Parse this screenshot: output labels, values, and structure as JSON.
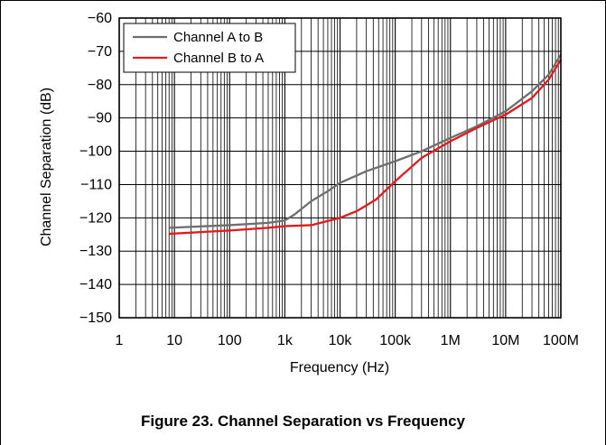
{
  "caption": "Figure 23. Channel Separation vs Frequency",
  "chart_data": {
    "type": "line",
    "title": "",
    "xlabel": "Frequency (Hz)",
    "ylabel": "Channel Separation (dB)",
    "xscale": "log",
    "xlim": [
      1,
      100000000
    ],
    "ylim": [
      -150,
      -60
    ],
    "grid": true,
    "legend_position": "top-left",
    "x_tick_labels": [
      "1",
      "10",
      "100",
      "1k",
      "10k",
      "100k",
      "1M",
      "10M",
      "100M"
    ],
    "y_tick_labels": [
      "−60",
      "−70",
      "−80",
      "−90",
      "−100",
      "−110",
      "−120",
      "−130",
      "−140",
      "−150"
    ],
    "series": [
      {
        "name": "Channel A to B",
        "color": "#6e6e6e",
        "x": [
          8,
          100,
          500,
          1000,
          1500,
          3000,
          6000,
          10000,
          30000,
          100000,
          300000,
          1000000,
          3000000,
          10000000,
          30000000,
          60000000,
          100000000
        ],
        "y": [
          -123,
          -122.2,
          -121.5,
          -120.8,
          -119,
          -115,
          -112,
          -109.5,
          -106,
          -103,
          -100,
          -96,
          -92.5,
          -88,
          -82,
          -77,
          -71
        ]
      },
      {
        "name": "Channel B to A",
        "color": "#e41a1c",
        "x": [
          8,
          100,
          500,
          1000,
          3000,
          10000,
          20000,
          45000,
          100000,
          300000,
          1000000,
          3000000,
          10000000,
          30000000,
          60000000,
          100000000
        ],
        "y": [
          -124.8,
          -123.8,
          -123,
          -122.5,
          -122.2,
          -120,
          -118,
          -114.5,
          -109,
          -102,
          -97,
          -93,
          -89,
          -84,
          -78.5,
          -72.5
        ]
      }
    ]
  }
}
